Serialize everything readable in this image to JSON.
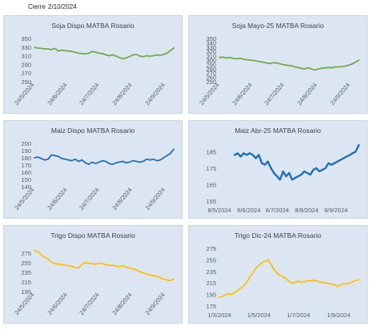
{
  "header": {
    "label": "Cierre",
    "date": "2/10/2024"
  },
  "colors": {
    "green": "#70ad47",
    "blue": "#1f6fb8",
    "gold": "#ffc000",
    "panel_bg": "#dce6f2",
    "tick": "#595959"
  },
  "chart_data": [
    {
      "type": "line",
      "title": "Soja Dispo MATBA Rosario",
      "color": "#70ad47",
      "x_start": "2024-05-24",
      "x_end": "2024-10-02",
      "yticks": [
        250,
        270,
        290,
        310,
        330,
        350
      ],
      "ylim": [
        250,
        350
      ],
      "xticks": [
        {
          "date": "2024-05-24",
          "label": "24/5/2024"
        },
        {
          "date": "2024-06-24",
          "label": "24/6/2024"
        },
        {
          "date": "2024-07-24",
          "label": "24/7/2024"
        },
        {
          "date": "2024-08-24",
          "label": "24/8/2024"
        },
        {
          "date": "2024-09-24",
          "label": "24/9/2024"
        }
      ],
      "tick_rotate": true,
      "series": [
        {
          "values": [
            329,
            328,
            327,
            326,
            326,
            324,
            327,
            321,
            323,
            322,
            321,
            320,
            318,
            316,
            315,
            314,
            316,
            320,
            318,
            316,
            315,
            312,
            310,
            312,
            309,
            306,
            303,
            305,
            308,
            312,
            313,
            309,
            308,
            310,
            309,
            310,
            312,
            311,
            313,
            316,
            322,
            328
          ]
        }
      ]
    },
    {
      "type": "line",
      "title": "Soja Mayo-25 MATBA Rosario",
      "color": "#70ad47",
      "x_start": "2024-05-24",
      "x_end": "2024-10-02",
      "yticks": [
        250,
        260,
        270,
        280,
        290,
        300,
        310,
        320,
        330,
        340,
        350
      ],
      "ylim": [
        250,
        350
      ],
      "xticks": [
        {
          "date": "2024-05-24",
          "label": "24/5/2024"
        },
        {
          "date": "2024-06-24",
          "label": "24/6/2024"
        },
        {
          "date": "2024-07-24",
          "label": "24/7/2024"
        },
        {
          "date": "2024-08-24",
          "label": "24/8/2024"
        },
        {
          "date": "2024-09-24",
          "label": "24/9/2024"
        }
      ],
      "tick_rotate": true,
      "series": [
        {
          "values": [
            306,
            307,
            305,
            306,
            304,
            303,
            304,
            302,
            301,
            300,
            299,
            298,
            296,
            295,
            293,
            292,
            294,
            293,
            291,
            289,
            288,
            287,
            285,
            283,
            281,
            279,
            282,
            280,
            277,
            279,
            281,
            282,
            283,
            282,
            284,
            284,
            285,
            286,
            288,
            291,
            295,
            300
          ]
        }
      ]
    },
    {
      "type": "line",
      "title": "Maiz Dispo MATBA Rosario",
      "color": "#1f6fb8",
      "x_start": "2024-05-24",
      "x_end": "2024-10-02",
      "yticks": [
        140,
        150,
        160,
        170,
        180,
        190,
        200
      ],
      "ylim": [
        140,
        200
      ],
      "xticks": [
        {
          "date": "2024-05-24",
          "label": "24/5/2024"
        },
        {
          "date": "2024-06-24",
          "label": "24/6/2024"
        },
        {
          "date": "2024-07-24",
          "label": "24/7/2024"
        },
        {
          "date": "2024-08-24",
          "label": "24/8/2024"
        },
        {
          "date": "2024-09-24",
          "label": "24/9/2024"
        }
      ],
      "tick_rotate": true,
      "series": [
        {
          "values": [
            180,
            181,
            179,
            177,
            178,
            184,
            183,
            182,
            179,
            178,
            177,
            176,
            178,
            175,
            177,
            173,
            171,
            174,
            172,
            174,
            176,
            175,
            172,
            171,
            173,
            174,
            175,
            173,
            174,
            176,
            175,
            174,
            175,
            178,
            177,
            178,
            176,
            177,
            180,
            183,
            186,
            192
          ]
        }
      ]
    },
    {
      "type": "line",
      "title": "Maiz Abr-25 MATBA Rosario",
      "color": "#1f6fb8",
      "x_start": "2024-05-08",
      "x_end": "2024-10-02",
      "yticks": [
        155,
        165,
        175,
        185
      ],
      "ylim": [
        155,
        190
      ],
      "xticks": [
        {
          "date": "2024-05-08",
          "label": "8/5/2024"
        },
        {
          "date": "2024-06-08",
          "label": "8/6/2024"
        },
        {
          "date": "2024-07-08",
          "label": "8/7/2024"
        },
        {
          "date": "2024-08-08",
          "label": "8/8/2024"
        },
        {
          "date": "2024-09-08",
          "label": "8/9/2024"
        }
      ],
      "tick_rotate": false,
      "data_start": "2024-05-24",
      "series": [
        {
          "values": [
            183,
            184,
            182,
            184,
            183,
            184,
            183,
            181,
            183,
            178,
            177,
            179,
            175,
            172,
            170,
            168,
            173,
            170,
            172,
            168,
            169,
            170,
            171,
            173,
            172,
            171,
            174,
            175,
            173,
            174,
            175,
            178,
            177,
            178,
            179,
            180,
            181,
            182,
            183,
            184,
            185,
            189
          ]
        }
      ]
    },
    {
      "type": "line",
      "title": "Trigo Dispo MATBA Rosario",
      "color": "#ffc000",
      "x_start": "2024-05-24",
      "x_end": "2024-10-02",
      "yticks": [
        195,
        215,
        235,
        255,
        275
      ],
      "ylim": [
        195,
        285
      ],
      "xticks": [
        {
          "date": "2024-05-24",
          "label": "24/5/2024"
        },
        {
          "date": "2024-06-24",
          "label": "24/6/2024"
        },
        {
          "date": "2024-07-24",
          "label": "24/7/2024"
        },
        {
          "date": "2024-08-24",
          "label": "24/8/2024"
        },
        {
          "date": "2024-09-24",
          "label": "24/9/2024"
        }
      ],
      "tick_rotate": true,
      "series": [
        {
          "values": [
            280,
            278,
            272,
            266,
            263,
            256,
            253,
            252,
            251,
            250,
            249,
            247,
            245,
            244,
            252,
            255,
            254,
            253,
            252,
            254,
            253,
            251,
            249,
            250,
            248,
            247,
            249,
            246,
            244,
            242,
            240,
            236,
            234,
            231,
            230,
            228,
            227,
            224,
            221,
            219,
            218,
            221
          ]
        }
      ]
    },
    {
      "type": "line",
      "title": "Trigo Dic-24 MATBA Rosario",
      "color": "#ffc000",
      "x_start": "2024-03-01",
      "x_end": "2024-10-02",
      "yticks": [
        175,
        195,
        215,
        235,
        255,
        275
      ],
      "ylim": [
        175,
        275
      ],
      "xticks": [
        {
          "date": "2024-03-01",
          "label": "1/3/2024"
        },
        {
          "date": "2024-05-01",
          "label": "1/5/2024"
        },
        {
          "date": "2024-07-01",
          "label": "1/7/2024"
        },
        {
          "date": "2024-09-01",
          "label": "1/9/2024"
        }
      ],
      "tick_rotate": false,
      "data_start": "2024-03-01",
      "series": [
        {
          "values": [
            190,
            192,
            194,
            196,
            195,
            198,
            202,
            206,
            210,
            216,
            225,
            232,
            240,
            245,
            250,
            252,
            255,
            248,
            238,
            232,
            228,
            226,
            222,
            218,
            214,
            216,
            218,
            216,
            217,
            219,
            218,
            220,
            219,
            217,
            216,
            215,
            214,
            213,
            212,
            209,
            211,
            214,
            213,
            215,
            217,
            219,
            221
          ]
        }
      ]
    }
  ]
}
